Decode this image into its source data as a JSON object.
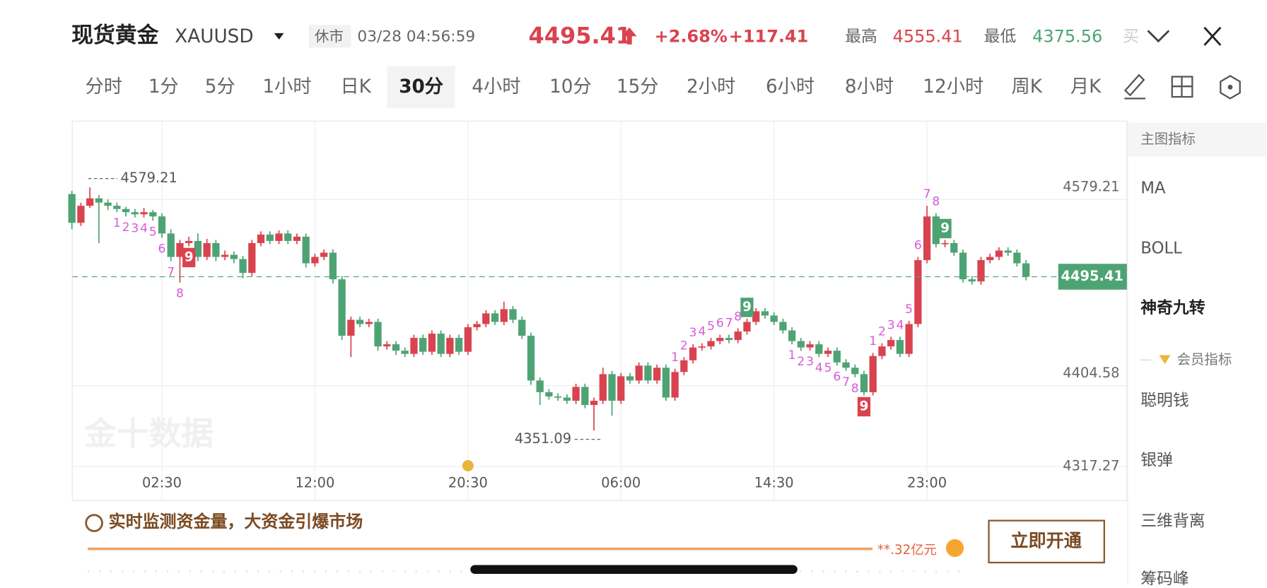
{
  "header": {
    "name": "现货黄金",
    "symbol": "XAUUSD",
    "status": "休市",
    "time": "03/28 04:56:59",
    "price": "4495.41",
    "change_pct": "+2.68%",
    "change": "+117.41",
    "high_label": "最高",
    "high": "4555.41",
    "low_label": "最低",
    "low": "4375.56",
    "buy": "买"
  },
  "tabs": {
    "items": [
      "分时",
      "1分",
      "5分",
      "1小时",
      "日K",
      "30分",
      "4小时",
      "10分",
      "15分",
      "2小时",
      "6小时",
      "8小时",
      "12小时",
      "周K",
      "月K"
    ],
    "active": 5
  },
  "indicator_panel": {
    "title": "主图指标",
    "items": [
      "MA",
      "BOLL",
      "神奇九转"
    ],
    "member_title": "会员指标",
    "member_items": [
      "聪明钱",
      "银弹",
      "三维背离",
      "筹码峰"
    ]
  },
  "banner": {
    "text": "实时监测资金量，大资金引爆市场",
    "amount": "**.32亿元",
    "button": "立即开通"
  },
  "watermark": "金十数据",
  "chart_data": {
    "type": "candlestick",
    "up_color": "#d9434f",
    "down_color": "#4ea374",
    "label_color": "#d65bd9",
    "grid": true,
    "ylim": [
      4317.27,
      4641.5
    ],
    "yticks": [
      4317.27,
      4404.58,
      4579.21
    ],
    "categories": [
      null,
      null,
      null,
      null,
      null,
      null,
      null,
      null,
      null,
      null,
      "02:30",
      null,
      null,
      null,
      null,
      null,
      null,
      null,
      null,
      null,
      null,
      null,
      null,
      null,
      null,
      null,
      null,
      "12:00",
      null,
      null,
      null,
      null,
      null,
      null,
      null,
      null,
      null,
      null,
      null,
      null,
      null,
      null,
      null,
      null,
      "20:30",
      null,
      null,
      null,
      null,
      null,
      null,
      null,
      null,
      null,
      null,
      null,
      null,
      null,
      null,
      null,
      null,
      "06:00",
      null,
      null,
      null,
      null,
      null,
      null,
      null,
      null,
      null,
      null,
      null,
      null,
      null,
      null,
      null,
      null,
      "14:30",
      null,
      null,
      null,
      null,
      null,
      null,
      null,
      null,
      null,
      null,
      null,
      null,
      null,
      null,
      null,
      null,
      "23:00",
      null,
      null,
      null,
      null,
      null,
      null,
      null,
      null,
      null,
      null,
      null
    ],
    "open": [
      4573,
      4546,
      4562,
      4569,
      4565,
      4562,
      4559,
      4556,
      4554,
      4556,
      4552,
      4536,
      4514,
      4527,
      4529,
      4514,
      4527,
      4514,
      4516,
      4512,
      4499,
      4527,
      4535,
      4529,
      4536,
      4529,
      4533,
      4508,
      4514,
      4518,
      4493,
      4440,
      4455,
      4451,
      4453,
      4430,
      4432,
      4426,
      4423,
      4438,
      4425,
      4442,
      4423,
      4438,
      4425,
      4448,
      4451,
      4461,
      4453,
      4465,
      4455,
      4440,
      4398,
      4387,
      4383,
      4382,
      4379,
      4392,
      4375,
      4379,
      4404,
      4379,
      4402,
      4398,
      4412,
      4398,
      4410,
      4382,
      4406,
      4417,
      4429,
      4430,
      4435,
      4438,
      4436,
      4444,
      4453,
      4463,
      4459,
      4453,
      4445,
      4435,
      4429,
      4432,
      4423,
      4426,
      4415,
      4410,
      4404,
      4387,
      4421,
      4430,
      4436,
      4423,
      4451,
      4511,
      4552,
      4526,
      4527,
      4518,
      4493,
      4491,
      4511,
      4514,
      4520,
      4518,
      4508
    ],
    "high": [
      4576,
      4565,
      4579.21,
      4572,
      4568,
      4565,
      4561,
      4559,
      4560,
      4558,
      4555,
      4540,
      4530,
      4533,
      4536,
      4531,
      4530,
      4520,
      4519,
      4515,
      4530,
      4538,
      4538,
      4539,
      4539,
      4536,
      4536,
      4517,
      4521,
      4521,
      4496,
      4458,
      4458,
      4456,
      4456,
      4435,
      4435,
      4429,
      4441,
      4441,
      4445,
      4445,
      4441,
      4441,
      4451,
      4454,
      4464,
      4464,
      4472,
      4468,
      4458,
      4443,
      4401,
      4390,
      4386,
      4385,
      4395,
      4395,
      4382,
      4410,
      4407,
      4405,
      4405,
      4415,
      4415,
      4413,
      4413,
      4409,
      4420,
      4432,
      4433,
      4438,
      4441,
      4441,
      4447,
      4456,
      4466,
      4466,
      4462,
      4456,
      4448,
      4438,
      4435,
      4435,
      4429,
      4429,
      4418,
      4413,
      4407,
      4424,
      4433,
      4439,
      4439,
      4454,
      4514,
      4562,
      4555,
      4530,
      4530,
      4521,
      4496,
      4514,
      4517,
      4523,
      4523,
      4521,
      4511
    ],
    "low": [
      4540,
      4543,
      4560,
      4527,
      4558,
      4556,
      4552,
      4551,
      4551,
      4548,
      4532,
      4510,
      4490,
      4524,
      4510,
      4511,
      4510,
      4511,
      4508,
      4494,
      4496,
      4524,
      4526,
      4526,
      4526,
      4526,
      4504,
      4505,
      4511,
      4489,
      4436,
      4420,
      4448,
      4448,
      4426,
      4427,
      4422,
      4420,
      4420,
      4422,
      4422,
      4420,
      4420,
      4422,
      4422,
      4445,
      4448,
      4450,
      4450,
      4452,
      4437,
      4394,
      4375,
      4380,
      4379,
      4376,
      4376,
      4372,
      4351.09,
      4376,
      4365,
      4376,
      4395,
      4395,
      4395,
      4395,
      4379,
      4379,
      4403,
      4414,
      4426,
      4427,
      4432,
      4433,
      4433,
      4441,
      4450,
      4456,
      4450,
      4442,
      4432,
      4426,
      4426,
      4420,
      4420,
      4412,
      4407,
      4401,
      4384,
      4384,
      4418,
      4427,
      4420,
      4420,
      4448,
      4508,
      4523,
      4523,
      4515,
      4490,
      4488,
      4488,
      4508,
      4511,
      4515,
      4505,
      4492
    ],
    "close": [
      4546,
      4562,
      4569,
      4565,
      4562,
      4559,
      4556,
      4554,
      4556,
      4552,
      4536,
      4514,
      4527,
      4529,
      4514,
      4527,
      4514,
      4516,
      4512,
      4499,
      4527,
      4535,
      4529,
      4536,
      4529,
      4533,
      4508,
      4514,
      4518,
      4493,
      4440,
      4455,
      4451,
      4453,
      4430,
      4432,
      4426,
      4423,
      4438,
      4425,
      4442,
      4423,
      4438,
      4425,
      4448,
      4451,
      4461,
      4453,
      4465,
      4455,
      4440,
      4398,
      4387,
      4383,
      4382,
      4379,
      4392,
      4375,
      4379,
      4404,
      4379,
      4402,
      4398,
      4412,
      4398,
      4410,
      4382,
      4406,
      4417,
      4429,
      4430,
      4435,
      4438,
      4436,
      4444,
      4453,
      4463,
      4459,
      4453,
      4445,
      4435,
      4429,
      4432,
      4423,
      4426,
      4415,
      4410,
      4404,
      4387,
      4421,
      4430,
      4436,
      4423,
      4451,
      4511,
      4552,
      4526,
      4527,
      4518,
      4493,
      4491,
      4511,
      4514,
      4520,
      4518,
      4508,
      4495.41
    ],
    "td_sequences": [
      {
        "start": 5,
        "side": "down",
        "labels": [
          "1",
          "2",
          "3",
          "4",
          "5",
          "6",
          "7",
          "8",
          "9"
        ]
      },
      {
        "start": 67,
        "side": "up",
        "labels": [
          "1",
          "2",
          "3",
          "4",
          "5",
          "6",
          "7",
          "8",
          "9"
        ]
      },
      {
        "start": 80,
        "side": "down",
        "labels": [
          "1",
          "2",
          "3",
          "4",
          "5",
          "6",
          "7",
          "8",
          "9"
        ]
      },
      {
        "start": 89,
        "side": "up",
        "labels": [
          "1",
          "2",
          "3",
          "4",
          "5",
          "6",
          "7",
          "8",
          "9"
        ]
      }
    ]
  }
}
